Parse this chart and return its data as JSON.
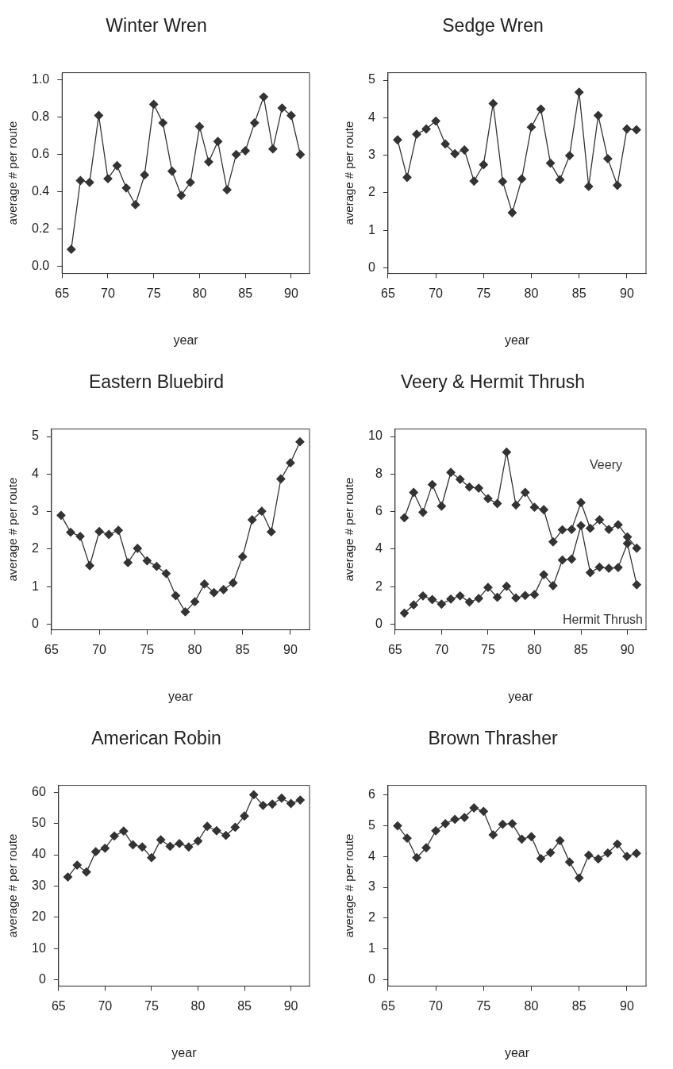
{
  "chart_data": [
    {
      "type": "line",
      "title": "Winter Wren",
      "xlabel": "year",
      "ylabel": "average # per route",
      "x": [
        66,
        67,
        68,
        69,
        70,
        71,
        72,
        73,
        74,
        75,
        76,
        77,
        78,
        79,
        80,
        81,
        82,
        83,
        84,
        85,
        86,
        87,
        88,
        89,
        90,
        91
      ],
      "xlim": [
        65,
        92
      ],
      "xticks": [
        65,
        70,
        75,
        80,
        85,
        90
      ],
      "ylim": [
        -0.04,
        1.04
      ],
      "yticks": [
        {
          "value": 0,
          "label": "0.0"
        },
        {
          "value": 0.2,
          "label": "0.2"
        },
        {
          "value": 0.4,
          "label": "0.4"
        },
        {
          "value": 0.6,
          "label": "0.6"
        },
        {
          "value": 0.8,
          "label": "0.8"
        },
        {
          "value": 1,
          "label": "1.0"
        }
      ],
      "grid": false,
      "marker": "diamond",
      "line_style": "solid",
      "series": [
        {
          "color": "#333333",
          "values": [
            0.09,
            0.46,
            0.45,
            0.81,
            0.47,
            0.54,
            0.42,
            0.33,
            0.49,
            0.87,
            0.77,
            0.51,
            0.38,
            0.45,
            0.75,
            0.56,
            0.67,
            0.41,
            0.6,
            0.62,
            0.77,
            0.91,
            0.63,
            0.85,
            0.81,
            0.6
          ]
        }
      ]
    },
    {
      "type": "line",
      "title": "Sedge Wren",
      "xlabel": "year",
      "ylabel": "average # per route",
      "x": [
        66,
        67,
        68,
        69,
        70,
        71,
        72,
        73,
        74,
        75,
        76,
        77,
        78,
        79,
        80,
        81,
        82,
        83,
        84,
        85,
        86,
        87,
        88,
        89,
        90,
        91
      ],
      "xlim": [
        65,
        92
      ],
      "xticks": [
        65,
        70,
        75,
        80,
        85,
        90
      ],
      "ylim": [
        -0.15,
        5.2
      ],
      "yticks": [
        0,
        1,
        2,
        3,
        4,
        5
      ],
      "grid": false,
      "marker": "diamond",
      "line_style": "solid",
      "series": [
        {
          "color": "#333333",
          "values": [
            3.41,
            2.41,
            3.56,
            3.7,
            3.91,
            3.3,
            3.04,
            3.14,
            2.31,
            2.75,
            4.38,
            2.3,
            1.47,
            2.37,
            3.75,
            4.23,
            2.79,
            2.35,
            2.99,
            4.68,
            2.17,
            4.06,
            2.91,
            2.2,
            3.7,
            3.68
          ]
        }
      ]
    },
    {
      "type": "line",
      "title": "Eastern Bluebird",
      "xlabel": "year",
      "ylabel": "average # per route",
      "x": [
        66,
        67,
        68,
        69,
        70,
        71,
        72,
        73,
        74,
        75,
        76,
        77,
        78,
        79,
        80,
        81,
        82,
        83,
        84,
        85,
        86,
        87,
        88,
        89,
        90,
        91
      ],
      "xlim": [
        65,
        92
      ],
      "xticks": [
        65,
        70,
        75,
        80,
        85,
        90
      ],
      "ylim": [
        -0.15,
        5.2
      ],
      "yticks": [
        0,
        1,
        2,
        3,
        4,
        5
      ],
      "grid": false,
      "marker": "diamond",
      "line_style": "solid",
      "series": [
        {
          "color": "#333333",
          "values": [
            2.9,
            2.45,
            2.34,
            1.56,
            2.47,
            2.39,
            2.5,
            1.64,
            2.02,
            1.69,
            1.54,
            1.35,
            0.76,
            0.33,
            0.6,
            1.07,
            0.84,
            0.92,
            1.1,
            1.8,
            2.78,
            3.01,
            2.46,
            3.87,
            4.3,
            4.86
          ]
        }
      ]
    },
    {
      "type": "line",
      "title": "Veery & Hermit Thrush",
      "xlabel": "year",
      "ylabel": "average # per route",
      "x": [
        66,
        67,
        68,
        69,
        70,
        71,
        72,
        73,
        74,
        75,
        76,
        77,
        78,
        79,
        80,
        81,
        82,
        83,
        84,
        85,
        86,
        87,
        88,
        89,
        90,
        91
      ],
      "xlim": [
        65,
        92
      ],
      "xticks": [
        65,
        70,
        75,
        80,
        85,
        90
      ],
      "ylim": [
        -0.3,
        10.4
      ],
      "yticks": [
        0,
        2,
        4,
        6,
        8,
        10
      ],
      "grid": false,
      "marker": "diamond",
      "line_style": "solid",
      "series": [
        {
          "name": "Veery",
          "color": "#333333",
          "values": [
            5.67,
            7.02,
            5.96,
            7.44,
            6.29,
            8.09,
            7.72,
            7.31,
            7.25,
            6.69,
            6.43,
            9.17,
            6.35,
            7.02,
            6.23,
            6.1,
            4.39,
            5.03,
            5.05,
            6.48,
            5.11,
            5.56,
            5.05,
            5.3,
            4.65,
            4.05
          ]
        },
        {
          "name": "Hermit Thrush",
          "color": "#333333",
          "values": [
            0.59,
            1.03,
            1.51,
            1.31,
            1.07,
            1.34,
            1.51,
            1.18,
            1.37,
            1.96,
            1.43,
            2.02,
            1.4,
            1.53,
            1.58,
            2.64,
            2.05,
            3.42,
            3.47,
            5.25,
            2.75,
            3.04,
            2.98,
            3.02,
            4.3,
            2.1
          ]
        }
      ]
    },
    {
      "type": "line",
      "title": "American Robin",
      "xlabel": "year",
      "ylabel": "average # per route",
      "x": [
        66,
        67,
        68,
        69,
        70,
        71,
        72,
        73,
        74,
        75,
        76,
        77,
        78,
        79,
        80,
        81,
        82,
        83,
        84,
        85,
        86,
        87,
        88,
        89,
        90,
        91
      ],
      "xlim": [
        65,
        92
      ],
      "xticks": [
        65,
        70,
        75,
        80,
        85,
        90
      ],
      "ylim": [
        -2,
        62.2
      ],
      "yticks": [
        0,
        10,
        20,
        30,
        40,
        50,
        60
      ],
      "grid": false,
      "marker": "diamond",
      "line_style": "solid",
      "series": [
        {
          "color": "#333333",
          "values": [
            32.9,
            36.7,
            34.5,
            41.0,
            42.1,
            46.0,
            47.6,
            43.2,
            42.5,
            39.1,
            44.8,
            42.7,
            43.6,
            42.5,
            44.4,
            49.1,
            47.7,
            46.2,
            48.8,
            52.4,
            59.2,
            55.8,
            56.2,
            58.1,
            56.4,
            57.5
          ]
        }
      ]
    },
    {
      "type": "line",
      "title": "Brown Thrasher",
      "xlabel": "year",
      "ylabel": "average # per route",
      "x": [
        66,
        67,
        68,
        69,
        70,
        71,
        72,
        73,
        74,
        75,
        76,
        77,
        78,
        79,
        80,
        81,
        82,
        83,
        84,
        85,
        86,
        87,
        88,
        89,
        90,
        91
      ],
      "xlim": [
        65,
        92
      ],
      "xticks": [
        65,
        70,
        75,
        80,
        85,
        90
      ],
      "ylim": [
        -0.2,
        6.3
      ],
      "yticks": [
        0,
        1,
        2,
        3,
        4,
        5,
        6
      ],
      "grid": false,
      "marker": "diamond",
      "line_style": "solid",
      "series": [
        {
          "color": "#333333",
          "values": [
            4.99,
            4.59,
            3.96,
            4.28,
            4.83,
            5.06,
            5.2,
            5.26,
            5.57,
            5.46,
            4.7,
            5.04,
            5.06,
            4.56,
            4.64,
            3.93,
            4.12,
            4.51,
            3.82,
            3.3,
            4.04,
            3.92,
            4.11,
            4.4,
            4.0,
            4.1
          ]
        }
      ]
    }
  ]
}
